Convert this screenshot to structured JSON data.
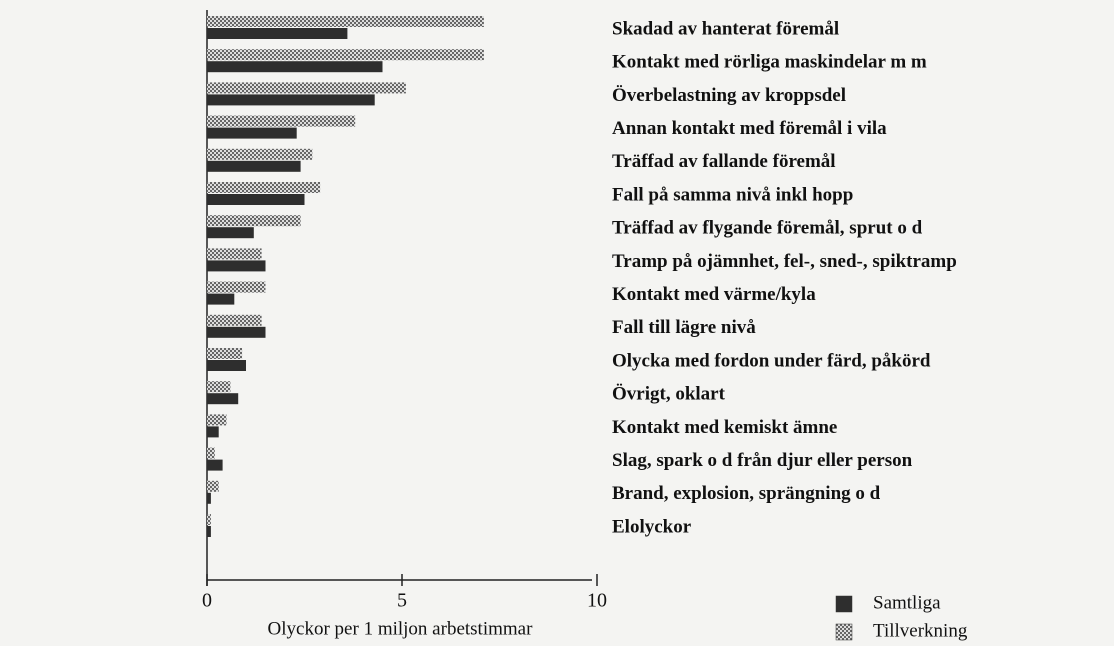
{
  "chart_data": {
    "type": "hbar",
    "xlabel": "Olyckor per 1 miljon arbetstimmar",
    "categories": [
      "Skadad av hanterat föremål",
      "Kontakt med rörliga maskindelar m m",
      "Överbelastning av kroppsdel",
      "Annan kontakt med föremål i vila",
      "Träffad av fallande föremål",
      "Fall på samma nivå inkl hopp",
      "Träffad av flygande föremål, sprut o d",
      "Tramp på ojämnhet, fel-, sned-, spiktramp",
      "Kontakt med värme/kyla",
      "Fall till lägre nivå",
      "Olycka med fordon under färd, påkörd",
      "Övrigt, oklart",
      "Kontakt med kemiskt ämne",
      "Slag, spark o d från djur eller person",
      "Brand, explosion, sprängning o d",
      "Elolyckor"
    ],
    "series": [
      {
        "name": "Samtliga",
        "color": "#2e2e2e",
        "values": [
          3.6,
          4.5,
          4.3,
          2.3,
          2.4,
          2.5,
          1.2,
          1.5,
          0.7,
          1.5,
          1.0,
          0.8,
          0.3,
          0.4,
          0.1,
          0.1
        ]
      },
      {
        "name": "Tillverkning",
        "color": "#a8a8a8",
        "values": [
          7.1,
          7.1,
          5.1,
          3.8,
          2.7,
          2.9,
          2.4,
          1.4,
          1.5,
          1.4,
          0.9,
          0.6,
          0.5,
          0.2,
          0.3,
          0.1
        ]
      }
    ],
    "xlim": [
      0,
      10
    ],
    "xticks": [
      0,
      5,
      10
    ]
  }
}
